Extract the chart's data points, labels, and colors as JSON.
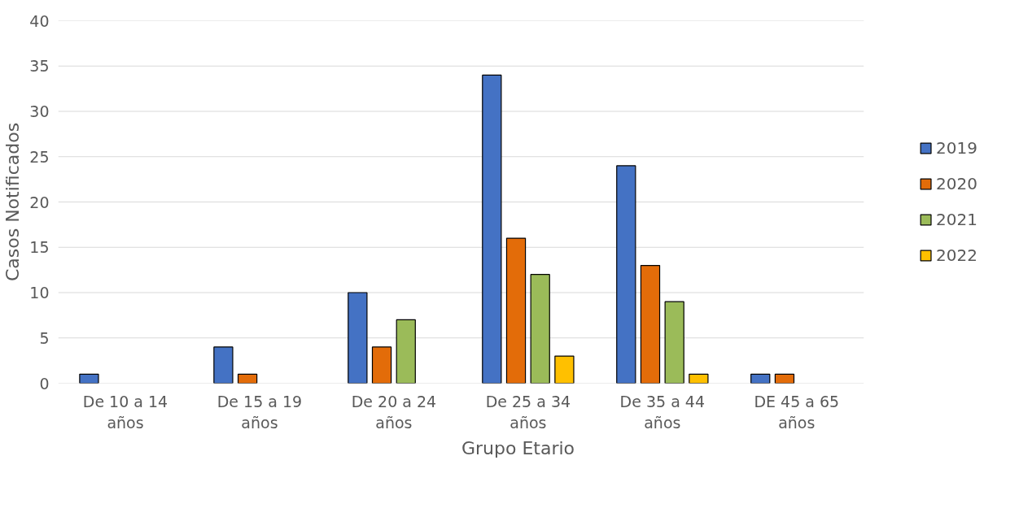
{
  "chart_data": {
    "type": "bar",
    "xlabel": "Grupo Etario",
    "ylabel": "Casos Notificados",
    "categories": [
      "De 10 a 14 años",
      "De 15 a 19 años",
      "De 20 a 24 años",
      "De 25 a 34 años",
      "De 35 a 44 años",
      "DE 45 a 65 años"
    ],
    "series": [
      {
        "name": "2019",
        "color": "#4472c4",
        "values": [
          1,
          4,
          10,
          34,
          24,
          1
        ]
      },
      {
        "name": "2020",
        "color": "#e36c09",
        "values": [
          null,
          1,
          4,
          16,
          13,
          1
        ]
      },
      {
        "name": "2021",
        "color": "#9bbb59",
        "values": [
          null,
          null,
          7,
          12,
          9,
          null
        ]
      },
      {
        "name": "2022",
        "color": "#ffc000",
        "values": [
          null,
          null,
          null,
          3,
          1,
          null
        ]
      }
    ],
    "ylim": [
      0,
      40
    ],
    "yticks": [
      0,
      5,
      10,
      15,
      20,
      25,
      30,
      35,
      40
    ],
    "grid": "y",
    "legend": "right"
  }
}
